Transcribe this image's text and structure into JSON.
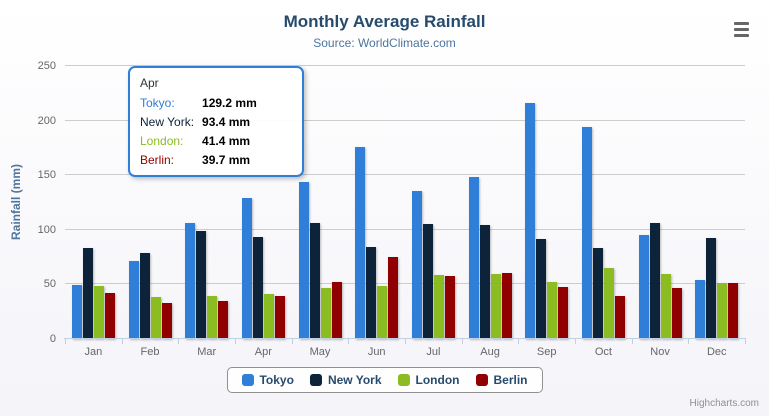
{
  "chart_data": {
    "type": "bar",
    "title": "Monthly Average Rainfall",
    "subtitle": "Source: WorldClimate.com",
    "xlabel": "",
    "ylabel": "Rainfall (mm)",
    "ylim": [
      0,
      250
    ],
    "yticks": [
      0,
      50,
      100,
      150,
      200,
      250
    ],
    "grid": true,
    "legend_position": "bottom",
    "categories": [
      "Jan",
      "Feb",
      "Mar",
      "Apr",
      "May",
      "Jun",
      "Jul",
      "Aug",
      "Sep",
      "Oct",
      "Nov",
      "Dec"
    ],
    "series": [
      {
        "name": "Tokyo",
        "color": "#2f7ed8",
        "values": [
          49.9,
          71.5,
          106.4,
          129.2,
          144.0,
          176.0,
          135.6,
          148.5,
          216.4,
          194.1,
          95.6,
          54.4
        ]
      },
      {
        "name": "New York",
        "color": "#0d233a",
        "values": [
          83.6,
          78.8,
          98.5,
          93.4,
          106.0,
          84.5,
          105.0,
          104.3,
          91.2,
          83.5,
          106.6,
          92.3
        ]
      },
      {
        "name": "London",
        "color": "#8bbc21",
        "values": [
          48.9,
          38.8,
          39.3,
          41.4,
          47.0,
          48.3,
          59.0,
          59.6,
          52.4,
          65.2,
          59.3,
          51.2
        ]
      },
      {
        "name": "Berlin",
        "color": "#910000",
        "values": [
          42.4,
          33.2,
          34.5,
          39.7,
          52.6,
          75.5,
          57.4,
          60.4,
          47.6,
          39.1,
          46.8,
          51.1
        ]
      }
    ]
  },
  "tooltip": {
    "category": "Apr",
    "rows": [
      {
        "name": "Tokyo",
        "value": "129.2 mm",
        "color": "#2f7ed8"
      },
      {
        "name": "New York",
        "value": "93.4 mm",
        "color": "#0d233a"
      },
      {
        "name": "London",
        "value": "41.4 mm",
        "color": "#8bbc21"
      },
      {
        "name": "Berlin",
        "value": "39.7 mm",
        "color": "#910000"
      }
    ]
  },
  "credits": "Highcharts.com"
}
